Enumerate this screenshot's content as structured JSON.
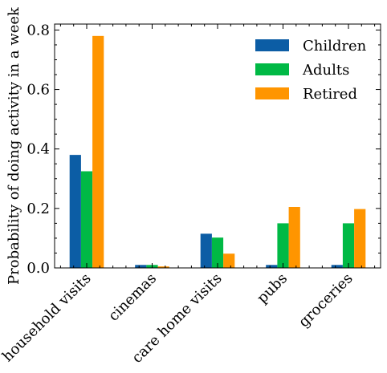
{
  "chart_data": {
    "type": "bar",
    "ylabel": "Probability of doing activity in a week",
    "categories": [
      "household visits",
      "cinemas",
      "care home visits",
      "pubs",
      "groceries"
    ],
    "series": [
      {
        "name": "Children",
        "color": "#0C5DA5",
        "values": [
          0.38,
          0.01,
          0.115,
          0.01,
          0.01
        ]
      },
      {
        "name": "Adults",
        "color": "#00B945",
        "values": [
          0.325,
          0.01,
          0.102,
          0.15,
          0.15
        ]
      },
      {
        "name": "Retired",
        "color": "#FF9500",
        "values": [
          0.78,
          0.005,
          0.048,
          0.205,
          0.198
        ]
      }
    ],
    "ylim": [
      0,
      0.82
    ],
    "yticks": [
      0.0,
      0.2,
      0.4,
      0.6,
      0.8
    ],
    "ytick_labels": [
      "0.0",
      "0.2",
      "0.4",
      "0.6",
      "0.8"
    ],
    "legend_position": "top-right",
    "grid": false
  }
}
